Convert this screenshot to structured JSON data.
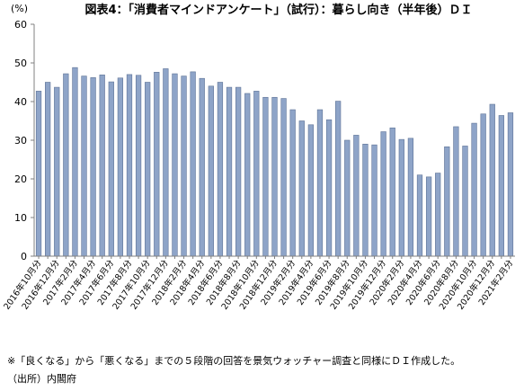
{
  "chart_data": {
    "type": "bar",
    "title": "図表4：「消費者マインドアンケート」（試行）：暮らし向き（半年後）ＤＩ",
    "ylabel": "(%)",
    "xlabel": "",
    "ylim": [
      0,
      60
    ],
    "yticks": [
      0,
      10,
      20,
      30,
      40,
      50,
      60
    ],
    "grid": false,
    "bar_color": "#8EA4C8",
    "bar_edge_color": "#5E7396",
    "categories": [
      "2016年10月分",
      "2016年11月分",
      "2016年12月分",
      "2017年1月分",
      "2017年2月分",
      "2017年3月分",
      "2017年4月分",
      "2017年5月分",
      "2017年6月分",
      "2017年7月分",
      "2017年8月分",
      "2017年9月分",
      "2017年10月分",
      "2017年11月分",
      "2017年12月分",
      "2018年1月分",
      "2018年2月分",
      "2018年3月分",
      "2018年4月分",
      "2018年5月分",
      "2018年6月分",
      "2018年7月分",
      "2018年8月分",
      "2018年9月分",
      "2018年10月分",
      "2018年11月分",
      "2018年12月分",
      "2019年1月分",
      "2019年2月分",
      "2019年3月分",
      "2019年4月分",
      "2019年5月分",
      "2019年6月分",
      "2019年7月分",
      "2019年8月分",
      "2019年9月分",
      "2019年10月分",
      "2019年11月分",
      "2019年12月分",
      "2020年1月分",
      "2020年2月分",
      "2020年3月分",
      "2020年4月分",
      "2020年5月分",
      "2020年6月分",
      "2020年7月分",
      "2020年8月分",
      "2020年9月分",
      "2020年10月分",
      "2020年11月分",
      "2020年12月分",
      "2021年1月分",
      "2021年2月分"
    ],
    "x_tick_labels": [
      "2016年10月分",
      "",
      "2016年12月分",
      "",
      "2017年2月分",
      "",
      "2017年4月分",
      "",
      "2017年6月分",
      "",
      "2017年8月分",
      "",
      "2017年10月分",
      "",
      "2017年12月分",
      "",
      "2018年2月分",
      "",
      "2018年4月分",
      "",
      "2018年6月分",
      "",
      "2018年8月分",
      "",
      "2018年10月分",
      "",
      "2018年12月分",
      "",
      "2019年2月分",
      "",
      "2019年4月分",
      "",
      "2019年6月分",
      "",
      "2019年8月分",
      "",
      "2019年10月分",
      "",
      "2019年12月分",
      "",
      "2020年2月分",
      "",
      "2020年4月分",
      "",
      "2020年6月分",
      "",
      "2020年8月分",
      "",
      "2020年10月分",
      "",
      "2020年12月分",
      "",
      "2021年2月分"
    ],
    "values": [
      42.7,
      45.0,
      43.7,
      47.2,
      48.8,
      46.6,
      46.2,
      46.9,
      45.1,
      46.1,
      47.0,
      46.8,
      45.0,
      47.6,
      48.5,
      47.2,
      46.6,
      47.7,
      46.0,
      44.0,
      45.0,
      43.7,
      43.7,
      42.1,
      42.7,
      41.1,
      41.1,
      40.8,
      37.9,
      35.0,
      34.0,
      37.9,
      35.3,
      40.1,
      30.0,
      31.3,
      29.0,
      28.8,
      32.2,
      33.2,
      30.2,
      30.5,
      21.0,
      20.5,
      21.5,
      28.3,
      33.5,
      28.5,
      34.4,
      36.8,
      39.3,
      36.4,
      37.1
    ]
  },
  "notes": {
    "line1": "※「良くなる」から「悪くなる」までの５段階の回答を景気ウォッチャー調査と同様にＤＩ作成した。",
    "line2": "（出所）内閣府"
  }
}
